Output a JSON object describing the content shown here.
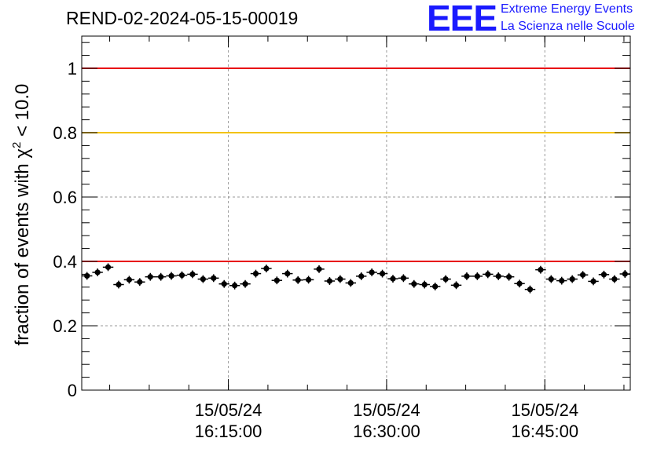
{
  "header": {
    "title": "REND-02-2024-05-15-00019",
    "logo_text": "EEE",
    "logo_line1": "Extreme Energy Events",
    "logo_line2": "La Scienza nelle Scuole"
  },
  "chart_data": {
    "type": "scatter",
    "title": "REND-02-2024-05-15-00019",
    "ylabel_main": "fraction of events with χ",
    "ylabel_sup": "2",
    "ylabel_tail": " < 10.0",
    "xlabel": "",
    "xlim": [
      0,
      52
    ],
    "ylim": [
      0,
      1.1
    ],
    "y_ticks": [
      0,
      0.2,
      0.4,
      0.6,
      0.8,
      1
    ],
    "y_tick_labels": [
      "0",
      "0.2",
      "0.4",
      "0.6",
      "0.8",
      "1"
    ],
    "x_ticks": [
      13.9,
      28.9,
      43.9
    ],
    "x_tick_labels": [
      [
        "15/05/24",
        "16:15:00"
      ],
      [
        "15/05/24",
        "16:30:00"
      ],
      [
        "15/05/24",
        "16:45:00"
      ]
    ],
    "grid": true,
    "reference_lines": [
      {
        "y": 1.0,
        "color": "#e8000b"
      },
      {
        "y": 0.8,
        "color": "#f2c200"
      },
      {
        "y": 0.4,
        "color": "#e8000b"
      }
    ],
    "series": [
      {
        "marker_color": "#000000",
        "x_error": 0.5,
        "y_error": 0.012,
        "x": [
          0.5,
          1.5,
          2.5,
          3.5,
          4.5,
          5.5,
          6.5,
          7.5,
          8.5,
          9.5,
          10.5,
          11.5,
          12.5,
          13.5,
          14.5,
          15.5,
          16.5,
          17.5,
          18.5,
          19.5,
          20.5,
          21.5,
          22.5,
          23.5,
          24.5,
          25.5,
          26.5,
          27.5,
          28.5,
          29.5,
          30.5,
          31.5,
          32.5,
          33.5,
          34.5,
          35.5,
          36.5,
          37.5,
          38.5,
          39.5,
          40.5,
          41.5,
          42.5,
          43.5,
          44.5,
          45.5,
          46.5,
          47.5,
          48.5,
          49.5,
          50.5,
          51.5
        ],
        "y": [
          0.355,
          0.366,
          0.382,
          0.328,
          0.343,
          0.336,
          0.352,
          0.352,
          0.355,
          0.357,
          0.36,
          0.345,
          0.348,
          0.33,
          0.325,
          0.33,
          0.362,
          0.378,
          0.341,
          0.362,
          0.342,
          0.343,
          0.376,
          0.339,
          0.345,
          0.333,
          0.354,
          0.366,
          0.362,
          0.346,
          0.348,
          0.33,
          0.328,
          0.322,
          0.345,
          0.326,
          0.354,
          0.354,
          0.36,
          0.354,
          0.352,
          0.331,
          0.313,
          0.374,
          0.345,
          0.34,
          0.345,
          0.358,
          0.338,
          0.359,
          0.345,
          0.361
        ]
      }
    ]
  }
}
